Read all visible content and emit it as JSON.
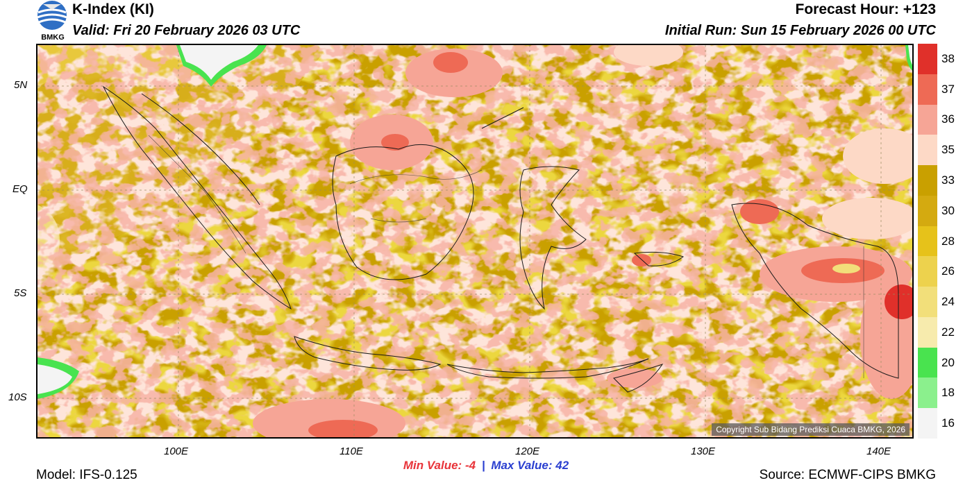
{
  "header": {
    "title": "K-Index (KI)",
    "valid": "Valid: Fri 20 February 2026 03 UTC",
    "forecast_hour": "Forecast Hour: +123",
    "initial_run": "Initial Run: Sun 15 February 2026 00 UTC",
    "logo_text": "BMKG"
  },
  "map": {
    "copyright": "Copyright Sub Bidang Prediksi Cuaca BMKG, 2026",
    "lat_labels": [
      "5N",
      "EQ",
      "5S",
      "10S"
    ],
    "lon_labels": [
      "100E",
      "110E",
      "120E",
      "130E",
      "140E"
    ],
    "extent": {
      "lon_min": 92,
      "lon_max": 142,
      "lat_min": -12,
      "lat_max": 7
    }
  },
  "stats": {
    "min_label": "Min Value:",
    "min_value": "-4",
    "separator": "|",
    "max_label": "Max Value:",
    "max_value": "42"
  },
  "footer": {
    "model": "Model: IFS-0.125",
    "source": "Source: ECMWF-CIPS BMKG"
  },
  "legend": {
    "labels": [
      "38",
      "37",
      "36",
      "35",
      "33",
      "30",
      "28",
      "26",
      "24",
      "22",
      "20",
      "18",
      "16"
    ],
    "colors": [
      "#e0302a",
      "#ee6a55",
      "#f6a596",
      "#fdd9c6",
      "#c9a000",
      "#d4aa10",
      "#e6c21a",
      "#edd24d",
      "#f2df7a",
      "#f7ebad",
      "#49e34f",
      "#8bf08d",
      "#f4f4f4"
    ]
  }
}
